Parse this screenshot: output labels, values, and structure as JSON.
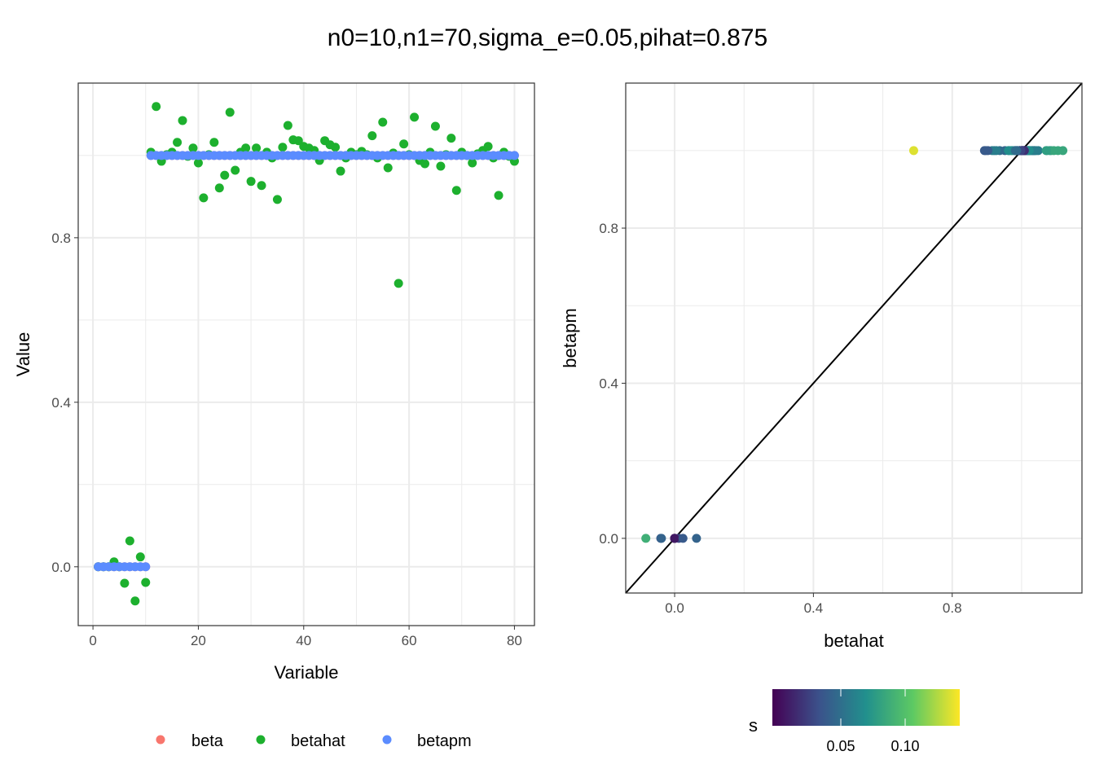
{
  "chart_data": [
    {
      "type": "scatter",
      "title": "n0=10,n1=70,sigma_e=0.05,pihat=0.875",
      "xlabel": "Variable",
      "ylabel": "Value",
      "xlim": [
        -2.8,
        83.8
      ],
      "ylim": [
        -0.143,
        1.176
      ],
      "xticks": [
        0,
        20,
        40,
        60,
        80
      ],
      "xtick_labels": [
        "0",
        "20",
        "40",
        "60",
        "80"
      ],
      "yticks": [
        0,
        0.4,
        0.8
      ],
      "ytick_labels": [
        "0.0",
        "0.4",
        "0.8"
      ],
      "legend": {
        "position": "bottom",
        "entries": [
          "beta",
          "betahat",
          "betapm"
        ]
      },
      "colors": {
        "beta": "#F8766D",
        "betahat": "#1DB02E",
        "betapm": "#5B8CFF"
      },
      "x_note": "x = variable index 1..80",
      "betahat": [
        0,
        0,
        0,
        0.012,
        0,
        -0.04,
        0.063,
        -0.083,
        0.024,
        -0.038,
        1.008,
        1.119,
        0.986,
        1.002,
        1.008,
        1.032,
        1.085,
        0.998,
        1.018,
        0.982,
        0.897,
        1.002,
        1.032,
        0.921,
        0.952,
        1.105,
        0.964,
        1.008,
        1.018,
        0.937,
        1.018,
        0.927,
        1.008,
        0.994,
        0.893,
        1.02,
        1.073,
        1.038,
        1.036,
        1.022,
        1.018,
        1.012,
        0.988,
        1.036,
        1.026,
        1.02,
        0.962,
        0.994,
        1.008,
        1.002,
        1.01,
        1.002,
        1.048,
        0.994,
        1.081,
        0.97,
        1.006,
        0.689,
        1.028,
        1.002,
        1.093,
        0.988,
        0.98,
        1.008,
        1.071,
        0.974,
        1.002,
        1.042,
        0.915,
        1.008,
        1.0,
        0.982,
        1.004,
        1.012,
        1.022,
        0.994,
        0.903,
        1.008,
        0.998,
        0.986
      ],
      "beta_n0": 10,
      "beta_n1": 70,
      "betapm_n0": 10,
      "betapm_n1": 70
    },
    {
      "type": "scatter",
      "xlabel": "betahat",
      "ylabel": "betapm",
      "xlim": [
        -0.141,
        1.174
      ],
      "ylim": [
        -0.141,
        1.174
      ],
      "xticks": [
        0,
        0.4,
        0.8
      ],
      "xtick_labels": [
        "0.0",
        "0.4",
        "0.8"
      ],
      "yticks": [
        0,
        0.4,
        0.8
      ],
      "ytick_labels": [
        "0.0",
        "0.4",
        "0.8"
      ],
      "reference_line": "y = x",
      "color_legend": {
        "title": "s",
        "range": [
          0,
          0.142
        ],
        "ticks": [
          0.05,
          0.1
        ],
        "tick_labels": [
          "0.05",
          "0.10"
        ],
        "scale": "viridis"
      },
      "s": [
        0.01,
        0.01,
        0.01,
        0.03,
        0.01,
        0.04,
        0.045,
        0.09,
        0.04,
        0.045,
        0.02,
        0.085,
        0.05,
        0.03,
        0.01,
        0.06,
        0.085,
        0.02,
        0.07,
        0.05,
        0.04,
        0.03,
        0.06,
        0.05,
        0.045,
        0.085,
        0.06,
        0.02,
        0.07,
        0.05,
        0.07,
        0.06,
        0.02,
        0.04,
        0.04,
        0.07,
        0.08,
        0.07,
        0.06,
        0.04,
        0.07,
        0.04,
        0.05,
        0.06,
        0.07,
        0.06,
        0.07,
        0.04,
        0.03,
        0.02,
        0.04,
        0.02,
        0.06,
        0.04,
        0.08,
        0.07,
        0.02,
        0.135,
        0.06,
        0.03,
        0.085,
        0.05,
        0.06,
        0.02,
        0.08,
        0.07,
        0.03,
        0.06,
        0.06,
        0.02,
        0.005,
        0.05,
        0.03,
        0.04,
        0.07,
        0.04,
        0.04,
        0.02,
        0.03,
        0.05
      ]
    }
  ]
}
